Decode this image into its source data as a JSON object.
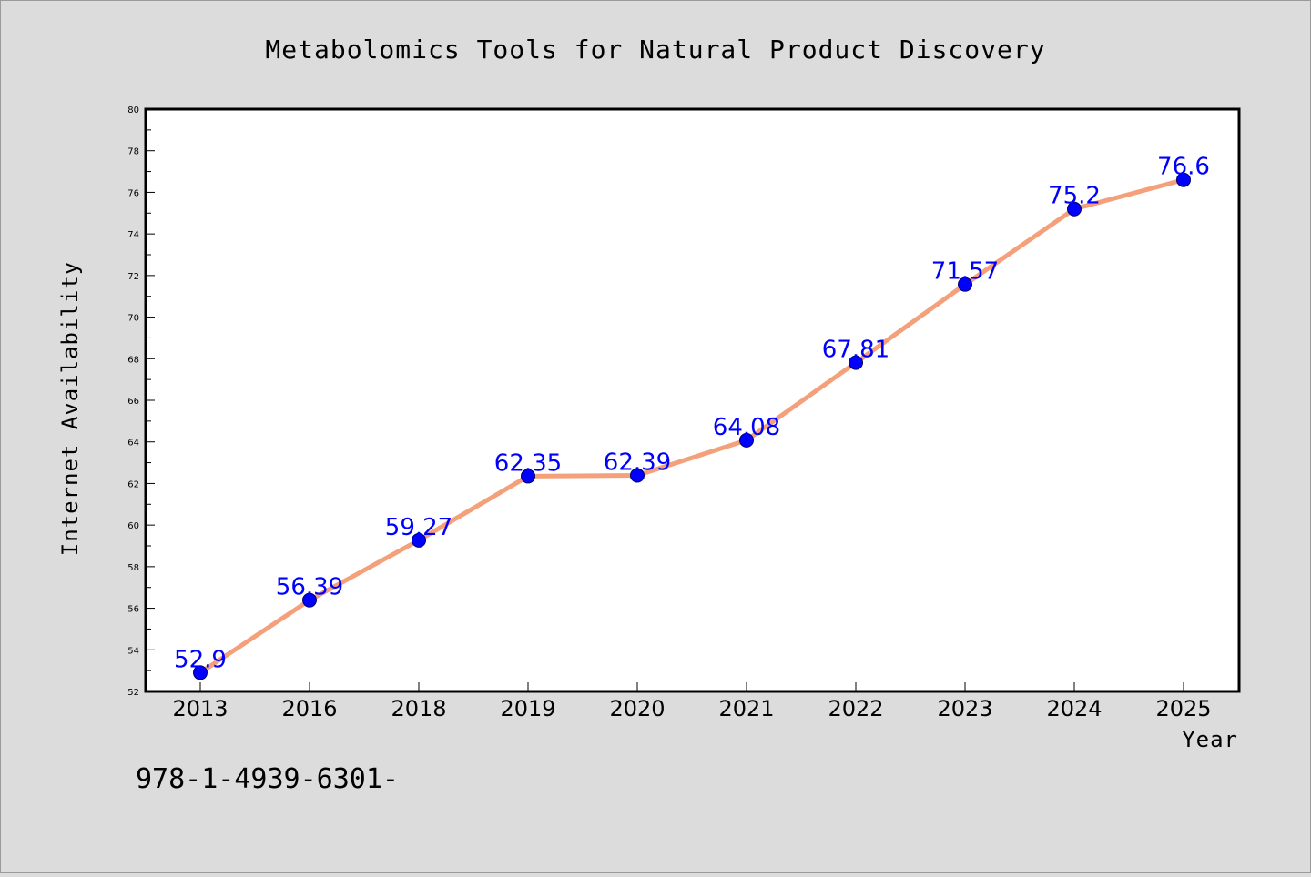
{
  "chart_data": {
    "type": "line",
    "title": "Metabolomics Tools for Natural Product Discovery",
    "xlabel": "Year",
    "ylabel": "Internet Availability",
    "categories": [
      "2013",
      "2016",
      "2018",
      "2019",
      "2020",
      "2021",
      "2022",
      "2023",
      "2024",
      "2025"
    ],
    "series": [
      {
        "values": [
          52.9,
          56.39,
          59.27,
          62.35,
          62.39,
          64.08,
          67.81,
          71.57,
          75.2,
          76.6
        ],
        "data_labels": [
          "52.9",
          "56.39",
          "59.27",
          "62.35",
          "62.39",
          "64.08",
          "67.81",
          "71.57",
          "75.2",
          "76.6"
        ],
        "line_color": "#f4a07a",
        "marker_color": "#0000ff"
      }
    ],
    "ylim": [
      52,
      80
    ],
    "yticks": [
      "52",
      "54",
      "56",
      "58",
      "60",
      "62",
      "64",
      "66",
      "68",
      "70",
      "72",
      "74",
      "76",
      "78",
      "80"
    ],
    "grid": false,
    "legend": "none",
    "background_color": "#dcdcdc",
    "plot_background_color": "#ffffff"
  },
  "footnote": "978-1-4939-6301-"
}
